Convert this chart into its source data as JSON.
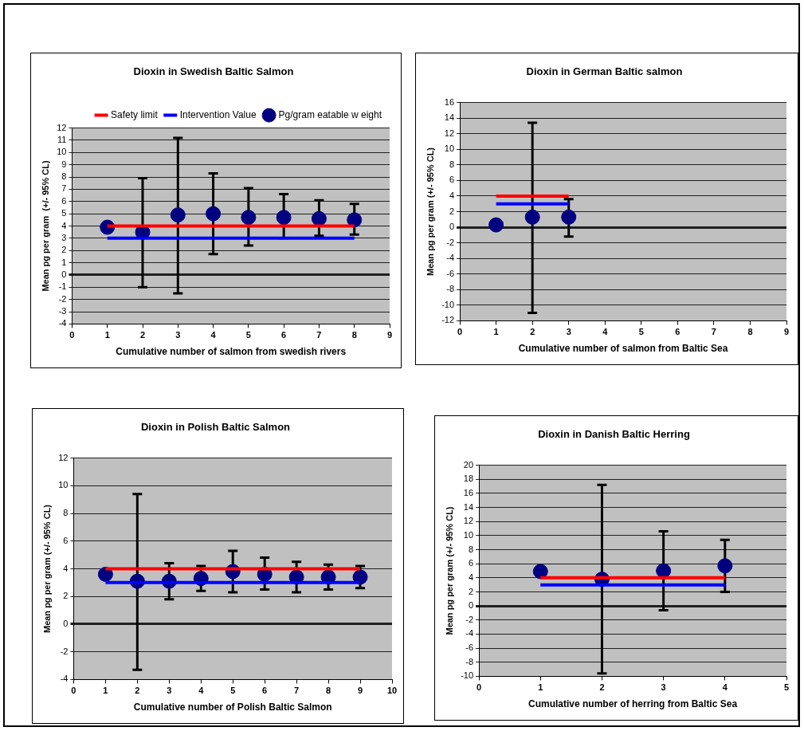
{
  "chart_data": [
    {
      "type": "scatter",
      "title": "Dioxin in Swedish Baltic Salmon",
      "xlabel": "Cumulative number of salmon from swedish rivers",
      "ylabel": "Mean pg per gram  (+/- 95% CL)",
      "xlim": [
        0,
        9
      ],
      "xticks": [
        0,
        1,
        2,
        3,
        4,
        5,
        6,
        7,
        8,
        9
      ],
      "ylim": [
        -4,
        12
      ],
      "yticks": [
        -4,
        -3,
        -2,
        -1,
        0,
        1,
        2,
        3,
        4,
        5,
        6,
        7,
        8,
        9,
        10,
        11,
        12
      ],
      "grid": "y",
      "legend": "top right",
      "marker": "circle",
      "x": [
        1,
        2,
        3,
        4,
        5,
        6,
        7,
        8
      ],
      "series": [
        {
          "name": "Pg/gram eatable w eight",
          "color": "#000080",
          "values": [
            3.9,
            3.5,
            4.9,
            5.0,
            4.7,
            4.7,
            4.6,
            4.5
          ],
          "errors": [
            null,
            [
              -1,
              7.9
            ],
            [
              -1.5,
              11.2
            ],
            [
              1.7,
              8.3
            ],
            [
              2.4,
              7.1
            ],
            [
              3.0,
              6.6
            ],
            [
              3.2,
              6.1
            ],
            [
              3.3,
              5.8
            ]
          ]
        },
        {
          "name": "Safety limit",
          "type": "line",
          "marker": "none",
          "color": "#ff0000",
          "values": [
            4,
            4,
            4,
            4,
            4,
            4,
            4,
            4
          ]
        },
        {
          "name": "Intervention Value",
          "type": "line",
          "marker": "none",
          "color": "#0000ff",
          "values": [
            3,
            3,
            3,
            3,
            3,
            3,
            3,
            3
          ]
        }
      ]
    },
    {
      "type": "scatter",
      "title": "Dioxin in German Baltic salmon",
      "xlabel": "Cumulative number of salmon from Baltic Sea",
      "ylabel": "Mean pg per gram (+/- 95% CL)",
      "xlim": [
        0,
        9
      ],
      "xticks": [
        0,
        1,
        2,
        3,
        4,
        5,
        6,
        7,
        8,
        9
      ],
      "ylim": [
        -12,
        16
      ],
      "yticks": [
        -12,
        -10,
        -8,
        -6,
        -4,
        -2,
        0,
        2,
        4,
        6,
        8,
        10,
        12,
        14,
        16
      ],
      "grid": "y",
      "marker": "circle",
      "x": [
        1,
        2,
        3
      ],
      "series": [
        {
          "color": "#000080",
          "values": [
            0.3,
            1.3,
            1.3
          ],
          "errors": [
            null,
            [
              -11,
              13.4
            ],
            [
              -1.2,
              3.6
            ]
          ]
        },
        {
          "type": "line",
          "marker": "none",
          "color": "#ff0000",
          "values": [
            4,
            4,
            4
          ]
        },
        {
          "type": "line",
          "marker": "none",
          "color": "#0000ff",
          "values": [
            3,
            3,
            3
          ]
        }
      ]
    },
    {
      "type": "scatter",
      "title": "Dioxin in Polish Baltic Salmon",
      "xlabel": "Cumulative number of Polish Baltic Salmon",
      "ylabel": "Mean pg per gram (+/- 95% CL)",
      "xlim": [
        0,
        10
      ],
      "xticks": [
        0,
        1,
        2,
        3,
        4,
        5,
        6,
        7,
        8,
        9,
        10
      ],
      "ylim": [
        -4,
        12
      ],
      "yticks": [
        -4,
        -2,
        0,
        2,
        4,
        6,
        8,
        10,
        12
      ],
      "grid": "y",
      "marker": "circle",
      "x": [
        1,
        2,
        3,
        4,
        5,
        6,
        7,
        8,
        9
      ],
      "series": [
        {
          "color": "#000080",
          "values": [
            3.6,
            3.1,
            3.1,
            3.3,
            3.8,
            3.6,
            3.4,
            3.4,
            3.4
          ],
          "errors": [
            null,
            [
              -3.3,
              9.4
            ],
            [
              1.8,
              4.4
            ],
            [
              2.4,
              4.2
            ],
            [
              2.3,
              5.3
            ],
            [
              2.5,
              4.8
            ],
            [
              2.3,
              4.5
            ],
            [
              2.5,
              4.3
            ],
            [
              2.6,
              4.2
            ]
          ]
        },
        {
          "type": "line",
          "marker": "none",
          "color": "#ff0000",
          "values": [
            4,
            4,
            4,
            4,
            4,
            4,
            4,
            4,
            4
          ]
        },
        {
          "type": "line",
          "marker": "none",
          "color": "#0000ff",
          "values": [
            3,
            3,
            3,
            3,
            3,
            3,
            3,
            3,
            3
          ]
        }
      ]
    },
    {
      "type": "scatter",
      "title": "Dioxin in Danish Baltic Herring",
      "xlabel": "Cumulative number of herring from Baltic Sea",
      "ylabel": "Mean pg per gram (+/- 95% CL)",
      "xlim": [
        0,
        5
      ],
      "xticks": [
        0,
        1,
        2,
        3,
        4,
        5
      ],
      "ylim": [
        -10,
        20
      ],
      "yticks": [
        -10,
        -8,
        -6,
        -4,
        -2,
        0,
        2,
        4,
        6,
        8,
        10,
        12,
        14,
        16,
        18,
        20
      ],
      "grid": "y",
      "marker": "circle",
      "x": [
        1,
        2,
        3,
        4
      ],
      "series": [
        {
          "color": "#000080",
          "values": [
            4.9,
            3.8,
            5.0,
            5.7
          ],
          "errors": [
            null,
            [
              -9.6,
              17.2
            ],
            [
              -0.6,
              10.6
            ],
            [
              2.0,
              9.4
            ]
          ]
        },
        {
          "type": "line",
          "marker": "none",
          "color": "#ff0000",
          "values": [
            4,
            4,
            4,
            4
          ]
        },
        {
          "type": "line",
          "marker": "none",
          "color": "#0000ff",
          "values": [
            3,
            3,
            3,
            3
          ]
        }
      ]
    }
  ]
}
